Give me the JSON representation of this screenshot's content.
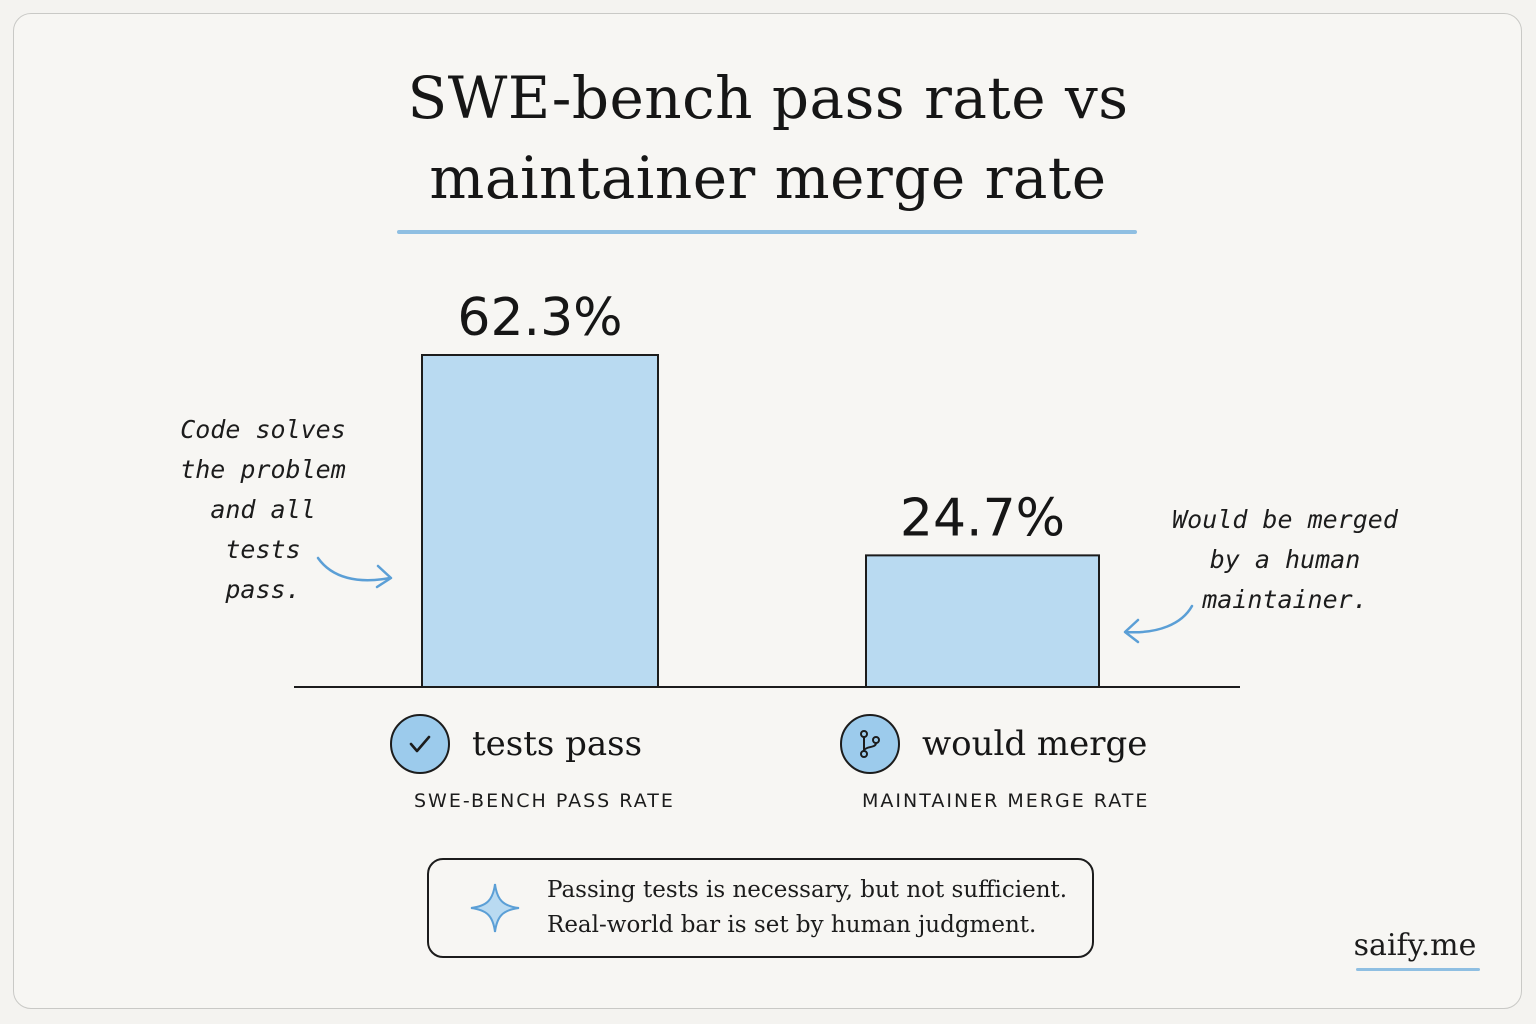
{
  "chart_data": {
    "type": "bar",
    "title": "SWE-bench pass rate vs maintainer merge rate",
    "title_lines": [
      "SWE-bench pass rate vs",
      "maintainer merge rate"
    ],
    "categories": [
      "tests pass",
      "would merge"
    ],
    "subcategories": [
      "SWE-BENCH PASS RATE",
      "MAINTAINER MERGE RATE"
    ],
    "values": [
      62.3,
      24.7
    ],
    "data_labels": [
      "62.3%",
      "24.7%"
    ],
    "unit": "%",
    "ylim": [
      0,
      100
    ],
    "grid": false,
    "annotations": [
      {
        "target": "tests pass",
        "lines": [
          "Code solves",
          "the problem",
          "and all tests",
          "pass."
        ]
      },
      {
        "target": "would merge",
        "lines": [
          "Would be merged",
          "by a human",
          "maintainer."
        ]
      }
    ],
    "colors": {
      "bar": "#b9daf1",
      "icon": "#9ccbec",
      "accent": "#8fbfe2"
    }
  },
  "icons": {
    "category_1": "check-circle-icon",
    "category_2": "git-branch-icon",
    "note": "sparkle-icon"
  },
  "note": {
    "lines": [
      "Passing tests is necessary, but not sufficient.",
      "Real-world bar is set by human judgment."
    ]
  },
  "brand": "saify.me"
}
